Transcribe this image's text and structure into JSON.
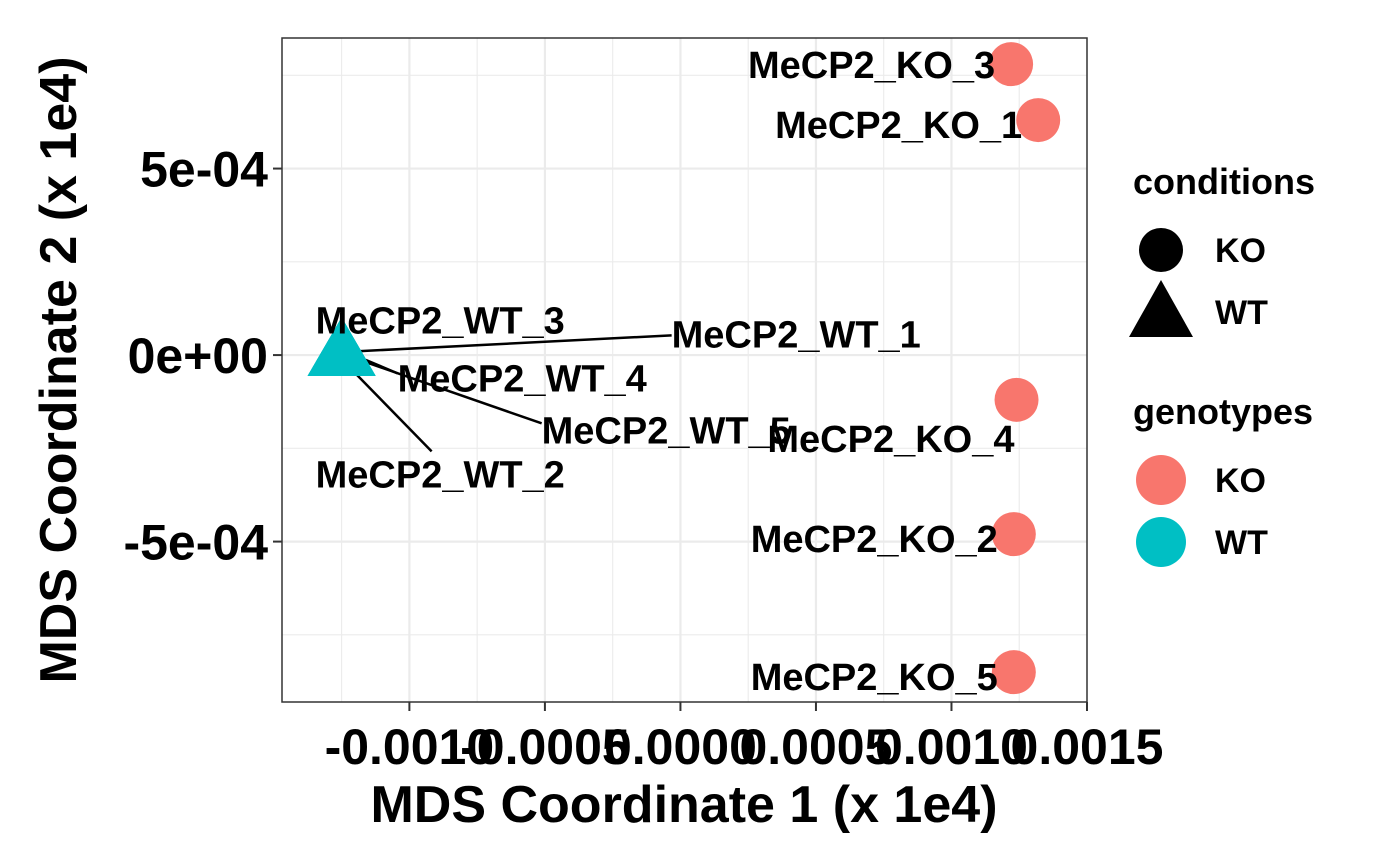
{
  "chart_data": {
    "type": "scatter",
    "xlabel": "MDS Coordinate 1 (x 1e4)",
    "ylabel": "MDS Coordinate 2 (x 1e4)",
    "xlim": [
      -0.00147,
      0.0015
    ],
    "ylim": [
      -0.00093,
      0.00085
    ],
    "x_ticks": [
      -0.001,
      -0.0005,
      0.0,
      0.0005,
      0.001,
      0.0015
    ],
    "x_tick_labels": [
      "-0.0010",
      "-0.0005",
      "0.0000",
      "0.0005",
      "0.0010",
      "0.0015"
    ],
    "y_ticks": [
      0.0005,
      0.0,
      -0.0005
    ],
    "y_tick_labels": [
      "5e-04",
      "0e+00",
      "-5e-04"
    ],
    "grid": true,
    "legend_position": "right",
    "points": [
      {
        "label": "MeCP2_KO_3",
        "x": 0.00122,
        "y": 0.00078,
        "condition": "KO",
        "genotype": "KO"
      },
      {
        "label": "MeCP2_KO_1",
        "x": 0.00132,
        "y": 0.00063,
        "condition": "KO",
        "genotype": "KO"
      },
      {
        "label": "MeCP2_KO_4",
        "x": 0.00124,
        "y": -0.00012,
        "condition": "KO",
        "genotype": "KO"
      },
      {
        "label": "MeCP2_KO_2",
        "x": 0.00123,
        "y": -0.00048,
        "condition": "KO",
        "genotype": "KO"
      },
      {
        "label": "MeCP2_KO_5",
        "x": 0.00123,
        "y": -0.00085,
        "condition": "KO",
        "genotype": "KO"
      },
      {
        "label": "MeCP2_WT_1",
        "x": -0.00125,
        "y": 1e-05,
        "condition": "WT",
        "genotype": "WT"
      },
      {
        "label": "MeCP2_WT_2",
        "x": -0.00125,
        "y": 1e-05,
        "condition": "WT",
        "genotype": "WT"
      },
      {
        "label": "MeCP2_WT_3",
        "x": -0.00125,
        "y": 1e-05,
        "condition": "WT",
        "genotype": "WT"
      },
      {
        "label": "MeCP2_WT_4",
        "x": -0.00125,
        "y": 1e-05,
        "condition": "WT",
        "genotype": "WT"
      },
      {
        "label": "MeCP2_WT_5",
        "x": -0.00125,
        "y": 1e-05,
        "condition": "WT",
        "genotype": "WT"
      }
    ],
    "legends": [
      {
        "title": "conditions",
        "kind": "shape",
        "items": [
          {
            "label": "KO",
            "shape": "circle"
          },
          {
            "label": "WT",
            "shape": "triangle"
          }
        ]
      },
      {
        "title": "genotypes",
        "kind": "color",
        "items": [
          {
            "label": "KO",
            "color": "#F8766D"
          },
          {
            "label": "WT",
            "color": "#00BFC4"
          }
        ]
      }
    ],
    "colors": {
      "KO": "#F8766D",
      "WT": "#00BFC4"
    }
  }
}
